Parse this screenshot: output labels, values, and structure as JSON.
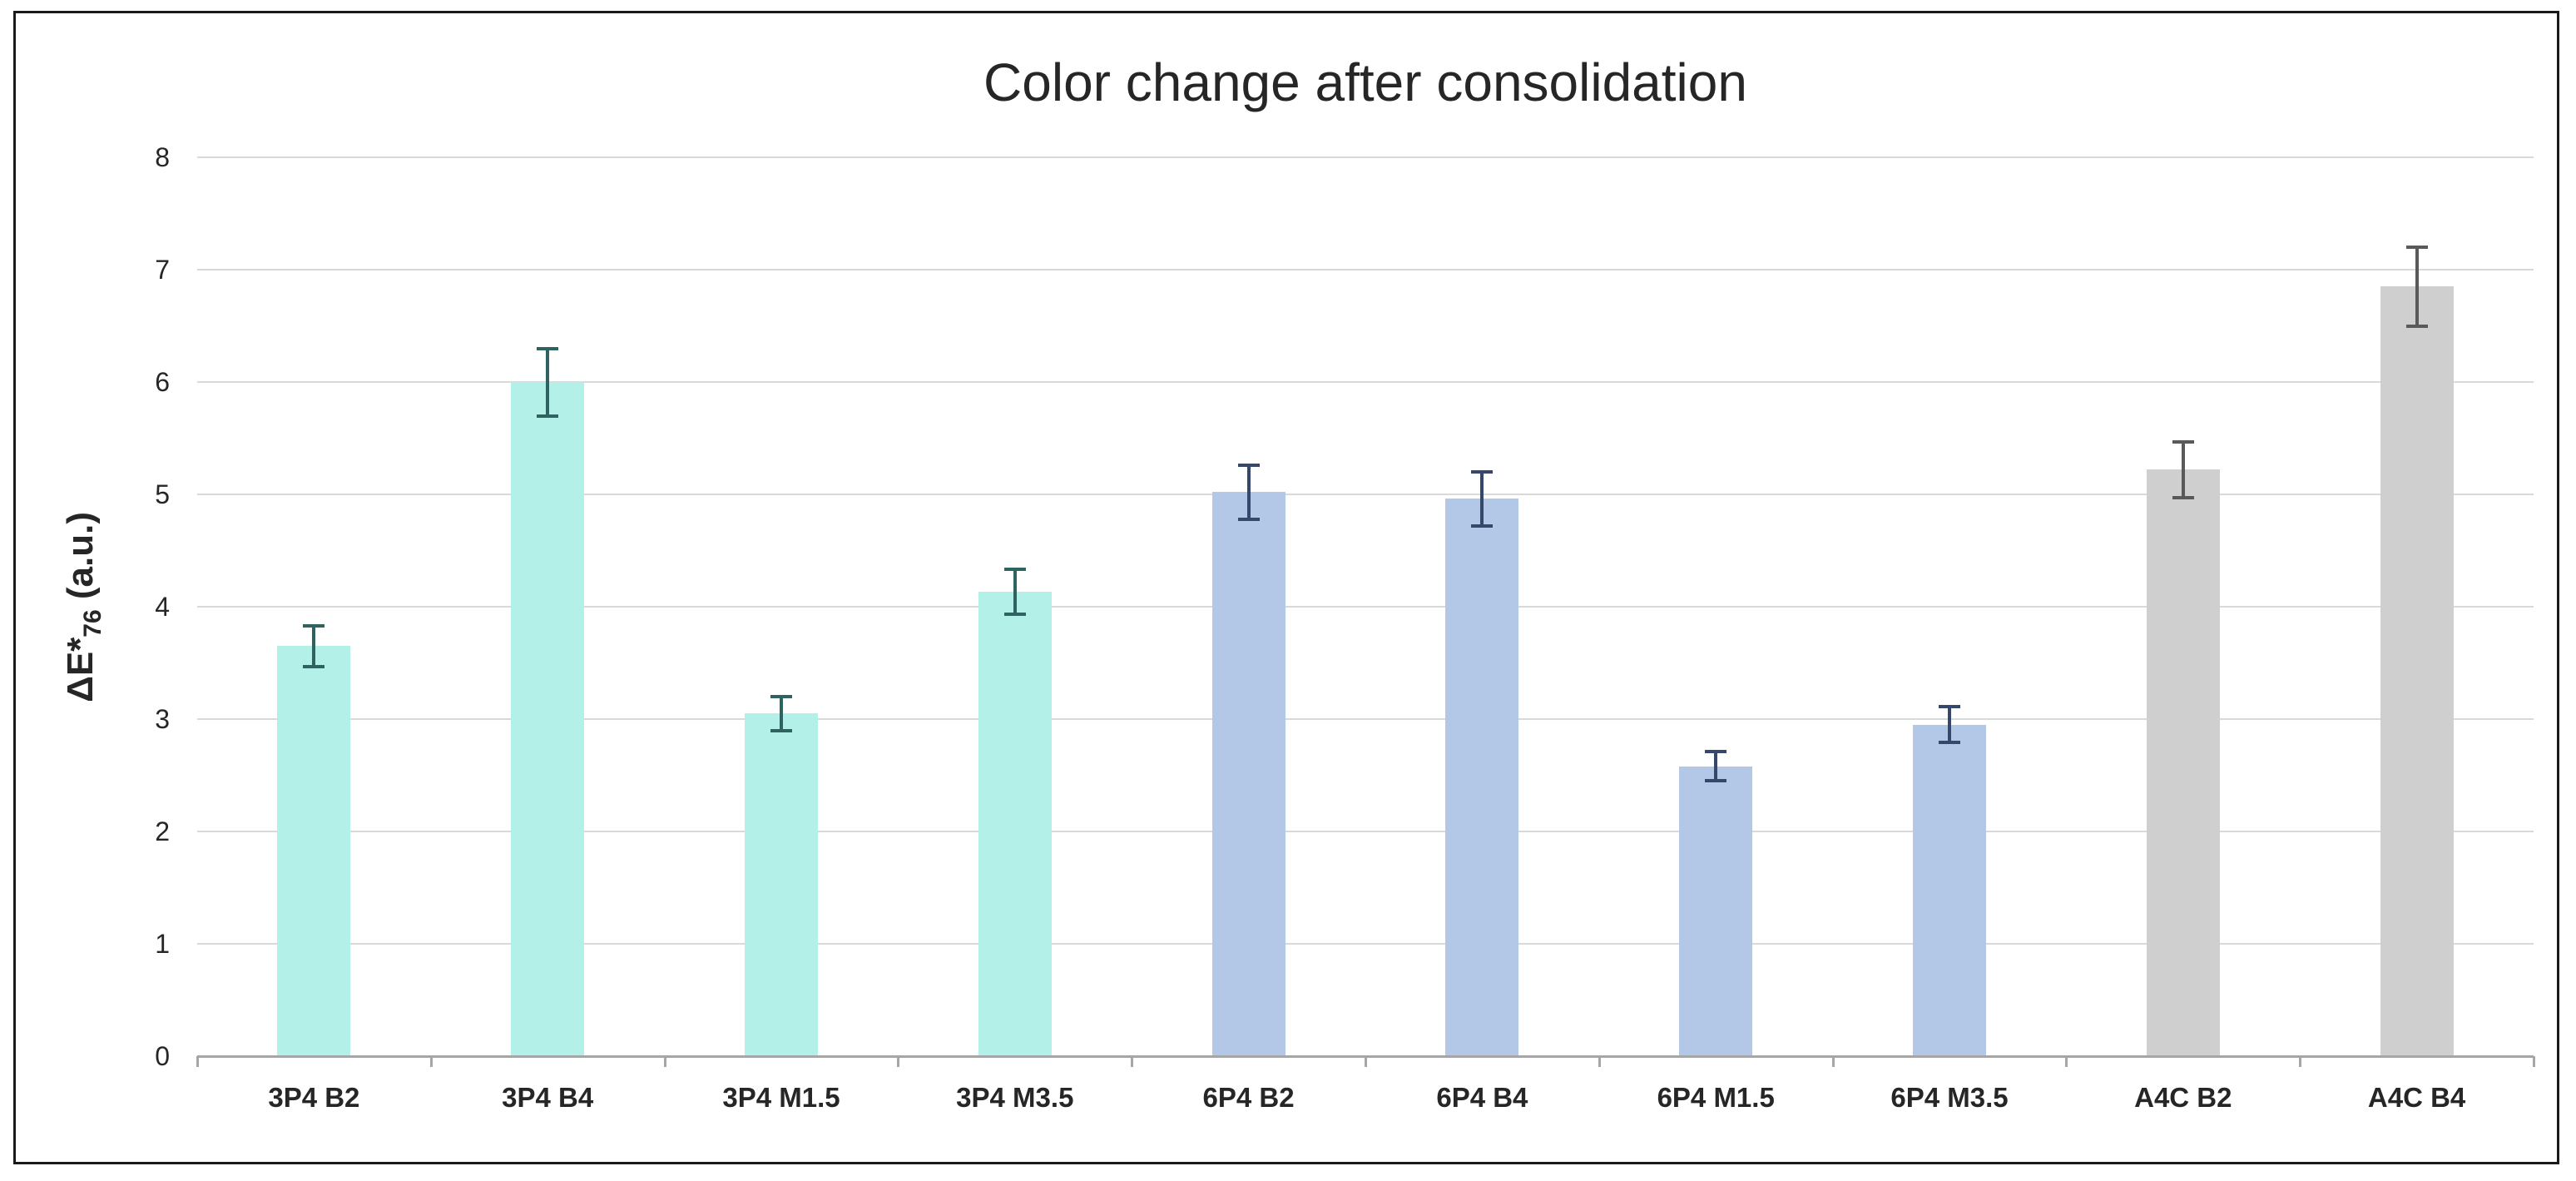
{
  "chart_data": {
    "type": "bar",
    "title": "Color change after consolidation",
    "ylabel": {
      "prefix": "ΔE",
      "star": "*",
      "subscript": "76",
      "suffix": " (a.u.)"
    },
    "ylabel_text": "ΔE*76 (a.u.)",
    "xlabel": "",
    "ylim": [
      0,
      8
    ],
    "yticks": [
      0,
      1,
      2,
      3,
      4,
      5,
      6,
      7,
      8
    ],
    "grid": true,
    "legend": false,
    "categories": [
      "3P4 B2",
      "3P4 B4",
      "3P4 M1.5",
      "3P4 M3.5",
      "6P4 B2",
      "6P4 B4",
      "6P4 M1.5",
      "6P4 M3.5",
      "A4C B2",
      "A4C B4"
    ],
    "values": [
      3.65,
      6.0,
      3.05,
      4.13,
      5.02,
      4.96,
      2.58,
      2.95,
      5.22,
      6.85
    ],
    "errors": [
      0.18,
      0.3,
      0.15,
      0.2,
      0.24,
      0.24,
      0.13,
      0.16,
      0.25,
      0.35
    ],
    "bar_colors": [
      "#b2f0e8",
      "#b2f0e8",
      "#b2f0e8",
      "#b2f0e8",
      "#b3c7e6",
      "#b3c7e6",
      "#b3c7e6",
      "#b3c7e6",
      "#cfcfcf",
      "#cfcfcf"
    ],
    "error_bar_colors": [
      "#2f6362",
      "#2f6362",
      "#2f6362",
      "#2f6362",
      "#35486b",
      "#35486b",
      "#35486b",
      "#35486b",
      "#595959",
      "#595959"
    ],
    "groups": [
      {
        "name": "3P4",
        "bar_color": "#b2f0e8"
      },
      {
        "name": "6P4",
        "bar_color": "#b3c7e6"
      },
      {
        "name": "A4C",
        "bar_color": "#cfcfcf"
      }
    ],
    "colors": {
      "background": "#ffffff",
      "frame_border": "#1a1a1a",
      "gridline": "#d9d9d9",
      "axis_line": "#a6a6a6",
      "text": "#262626"
    }
  }
}
